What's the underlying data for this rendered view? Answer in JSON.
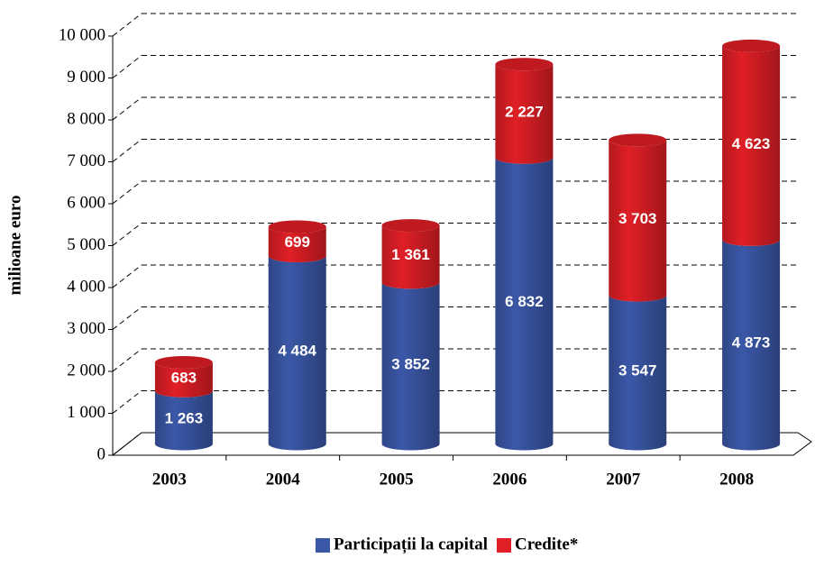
{
  "chart_data": {
    "type": "bar",
    "stacked": true,
    "y_label": "milioane euro",
    "categories": [
      "2003",
      "2004",
      "2005",
      "2006",
      "2007",
      "2008"
    ],
    "series": [
      {
        "name": "Participații la capital",
        "color": "#3b58a8",
        "values": [
          1263,
          4484,
          3852,
          6832,
          3547,
          4873
        ],
        "value_labels": [
          "1 263",
          "4 484",
          "3 852",
          "6 832",
          "3 547",
          "4 873"
        ]
      },
      {
        "name": "Credite*",
        "color": "#e01f26",
        "values": [
          683,
          699,
          1361,
          2227,
          3703,
          4623
        ],
        "value_labels": [
          "683",
          "699",
          "1 361",
          "2 227",
          "3 703",
          "4 623"
        ]
      }
    ],
    "ylim": [
      0,
      10000
    ],
    "yticks": [
      0,
      {
        "value": 1000,
        "label": "1 000"
      },
      {
        "value": 2000,
        "label": "2 000"
      },
      {
        "value": 3000,
        "label": "3 000"
      },
      {
        "value": 4000,
        "label": "4 000"
      },
      {
        "value": 5000,
        "label": "5 000"
      },
      {
        "value": 6000,
        "label": "6 000"
      },
      {
        "value": 7000,
        "label": "7 000"
      },
      {
        "value": 8000,
        "label": "8 000"
      },
      {
        "value": 9000,
        "label": "9 000"
      },
      {
        "value": 10000,
        "label": "10 000"
      }
    ],
    "grid": true,
    "legend": "bottom"
  }
}
